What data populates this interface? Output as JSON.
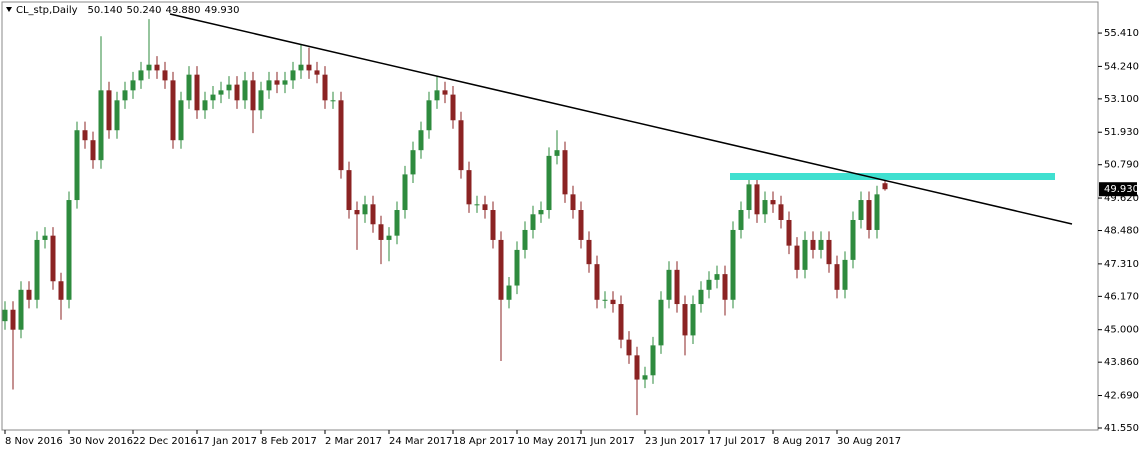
{
  "chart_data": {
    "type": "candlestick",
    "title": "CL_stp,Daily",
    "header_ohlc": [
      {
        "value": 50.14,
        "label": "50.140"
      },
      {
        "value": 50.24,
        "label": "50.240"
      },
      {
        "value": 49.88,
        "label": "49.880"
      },
      {
        "value": 49.93,
        "label": "49.930"
      }
    ],
    "price_label": {
      "value": 49.93,
      "label": "49.930"
    },
    "up_color": "#2e8b3e",
    "down_color": "#8b2323",
    "ylim": [
      41.48,
      56.5
    ],
    "yticks": [
      {
        "value": 55.41,
        "label": "55.410"
      },
      {
        "value": 54.24,
        "label": "54.240"
      },
      {
        "value": 53.1,
        "label": "53.100"
      },
      {
        "value": 51.93,
        "label": "51.930"
      },
      {
        "value": 50.79,
        "label": "50.790"
      },
      {
        "value": 49.62,
        "label": "49.620"
      },
      {
        "value": 48.48,
        "label": "48.480"
      },
      {
        "value": 47.31,
        "label": "47.310"
      },
      {
        "value": 46.17,
        "label": "46.170"
      },
      {
        "value": 45.0,
        "label": "45.000"
      },
      {
        "value": 43.86,
        "label": "43.860"
      },
      {
        "value": 42.69,
        "label": "42.690"
      },
      {
        "value": 41.55,
        "label": "41.550"
      }
    ],
    "categories": [
      "8 Nov 2016",
      null,
      null,
      null,
      null,
      null,
      null,
      null,
      "30 Nov 2016",
      null,
      null,
      null,
      null,
      null,
      null,
      null,
      "22 Dec 2016",
      null,
      null,
      null,
      null,
      null,
      null,
      null,
      "17 Jan 2017",
      null,
      null,
      null,
      null,
      null,
      null,
      null,
      "8 Feb 2017",
      null,
      null,
      null,
      null,
      null,
      null,
      null,
      "2 Mar 2017",
      null,
      null,
      null,
      null,
      null,
      null,
      null,
      "24 Mar 2017",
      null,
      null,
      null,
      null,
      null,
      null,
      null,
      "18 Apr 2017",
      null,
      null,
      null,
      null,
      null,
      null,
      null,
      "10 May 2017",
      null,
      null,
      null,
      null,
      null,
      null,
      null,
      "1 Jun 2017",
      null,
      null,
      null,
      null,
      null,
      null,
      null,
      "23 Jun 2017",
      null,
      null,
      null,
      null,
      null,
      null,
      null,
      "17 Jul 2017",
      null,
      null,
      null,
      null,
      null,
      null,
      null,
      "8 Aug 2017",
      null,
      null,
      null,
      null,
      null,
      null,
      null,
      "30 Aug 2017",
      null,
      null,
      null,
      null,
      null,
      null
    ],
    "open": [
      45.3,
      45.7,
      45.0,
      46.4,
      46.05,
      48.15,
      48.3,
      46.7,
      46.05,
      49.55,
      52.0,
      51.65,
      50.95,
      53.4,
      52.0,
      53.05,
      53.4,
      53.75,
      54.1,
      54.3,
      54.1,
      53.75,
      51.65,
      53.05,
      53.95,
      52.7,
      53.05,
      53.25,
      53.4,
      53.6,
      53.05,
      53.75,
      52.7,
      53.4,
      53.75,
      53.6,
      53.75,
      54.1,
      54.3,
      54.1,
      53.95,
      53.05,
      53.05,
      50.6,
      49.2,
      49.05,
      49.4,
      48.7,
      48.15,
      48.3,
      49.2,
      50.45,
      51.3,
      52.0,
      53.05,
      53.4,
      53.25,
      52.35,
      50.6,
      49.4,
      49.4,
      49.2,
      48.15,
      46.05,
      46.55,
      47.8,
      48.5,
      49.05,
      49.2,
      51.1,
      51.3,
      49.75,
      49.2,
      48.15,
      47.3,
      46.05,
      46.05,
      45.9,
      44.65,
      44.1,
      43.25,
      43.4,
      44.45,
      46.05,
      47.1,
      45.9,
      44.8,
      45.9,
      46.4,
      46.75,
      46.95,
      46.05,
      48.5,
      49.2,
      50.1,
      49.05,
      49.55,
      49.4,
      48.85,
      47.95,
      47.1,
      48.15,
      47.8,
      48.15,
      47.3,
      46.4,
      47.45,
      48.85,
      49.55,
      48.5,
      50.14
    ],
    "high": [
      46.0,
      46.0,
      46.7,
      46.7,
      48.45,
      48.6,
      48.6,
      47.0,
      49.85,
      52.3,
      52.3,
      51.95,
      55.3,
      53.7,
      53.35,
      53.7,
      54.05,
      54.4,
      55.9,
      54.6,
      54.4,
      54.05,
      53.35,
      54.25,
      54.25,
      53.35,
      53.55,
      53.7,
      53.9,
      53.9,
      54.05,
      54.05,
      53.7,
      54.05,
      54.05,
      54.05,
      54.4,
      55.0,
      54.9,
      54.4,
      54.25,
      53.35,
      53.35,
      50.9,
      49.5,
      49.7,
      49.7,
      49.0,
      48.6,
      49.5,
      50.75,
      51.6,
      52.3,
      53.35,
      53.9,
      53.7,
      53.55,
      52.65,
      50.9,
      49.7,
      49.7,
      49.5,
      48.45,
      46.85,
      48.1,
      48.8,
      49.35,
      49.5,
      51.4,
      52.0,
      51.6,
      50.05,
      49.5,
      48.45,
      47.6,
      46.35,
      46.35,
      46.2,
      44.95,
      44.4,
      43.7,
      44.75,
      46.35,
      47.4,
      47.4,
      46.2,
      46.2,
      46.7,
      47.05,
      47.25,
      47.25,
      48.8,
      49.5,
      50.4,
      50.4,
      49.85,
      49.85,
      49.7,
      49.15,
      48.25,
      48.45,
      48.45,
      48.45,
      48.45,
      47.6,
      47.75,
      49.15,
      49.85,
      49.85,
      50.05,
      50.24
    ],
    "low": [
      45.0,
      42.9,
      44.7,
      45.75,
      45.75,
      47.85,
      46.4,
      45.35,
      45.75,
      49.25,
      51.35,
      50.65,
      50.65,
      51.7,
      51.7,
      52.75,
      53.1,
      53.45,
      53.8,
      53.8,
      53.45,
      51.35,
      51.35,
      52.75,
      52.4,
      52.4,
      52.75,
      52.95,
      53.1,
      52.75,
      52.75,
      51.9,
      52.4,
      53.1,
      53.3,
      53.3,
      53.45,
      53.8,
      53.8,
      53.65,
      52.75,
      52.75,
      50.3,
      48.9,
      47.8,
      48.75,
      48.4,
      47.3,
      47.4,
      48.0,
      48.9,
      50.15,
      51.0,
      51.7,
      52.75,
      52.95,
      52.05,
      50.3,
      49.1,
      49.1,
      48.9,
      47.85,
      43.9,
      45.75,
      46.25,
      47.5,
      48.2,
      48.75,
      48.9,
      50.8,
      49.45,
      48.9,
      47.85,
      47.0,
      45.75,
      45.75,
      45.6,
      44.35,
      43.8,
      42.0,
      42.95,
      43.1,
      44.15,
      45.75,
      45.6,
      44.1,
      44.5,
      45.6,
      46.1,
      46.45,
      45.5,
      45.75,
      48.2,
      48.9,
      48.75,
      48.75,
      49.1,
      48.55,
      47.65,
      46.8,
      46.8,
      47.5,
      47.5,
      47.0,
      46.1,
      46.1,
      47.15,
      48.55,
      48.2,
      48.2,
      49.88
    ],
    "close": [
      45.7,
      45.0,
      46.4,
      46.05,
      48.15,
      48.3,
      46.7,
      46.05,
      49.55,
      52.0,
      51.65,
      50.95,
      53.4,
      52.0,
      53.05,
      53.4,
      53.75,
      54.1,
      54.3,
      54.1,
      53.75,
      51.65,
      53.05,
      53.95,
      52.7,
      53.05,
      53.25,
      53.4,
      53.6,
      53.05,
      53.75,
      52.7,
      53.4,
      53.75,
      53.6,
      53.75,
      54.1,
      54.3,
      54.1,
      53.95,
      53.05,
      53.05,
      50.6,
      49.2,
      49.05,
      49.4,
      48.7,
      48.15,
      48.3,
      49.2,
      50.45,
      51.3,
      52.0,
      53.05,
      53.4,
      53.25,
      52.35,
      50.6,
      49.4,
      49.4,
      49.2,
      48.15,
      46.05,
      46.55,
      47.8,
      48.5,
      49.05,
      49.2,
      51.1,
      51.3,
      49.75,
      49.2,
      48.15,
      47.3,
      46.05,
      46.05,
      45.9,
      44.65,
      44.1,
      43.25,
      43.4,
      44.45,
      46.05,
      47.1,
      45.9,
      44.8,
      45.9,
      46.4,
      46.75,
      46.95,
      46.05,
      48.5,
      49.2,
      50.1,
      49.05,
      49.55,
      49.4,
      48.85,
      47.95,
      47.1,
      48.15,
      47.8,
      48.15,
      47.3,
      46.4,
      47.45,
      48.85,
      49.55,
      48.5,
      49.75,
      49.93
    ]
  }
}
